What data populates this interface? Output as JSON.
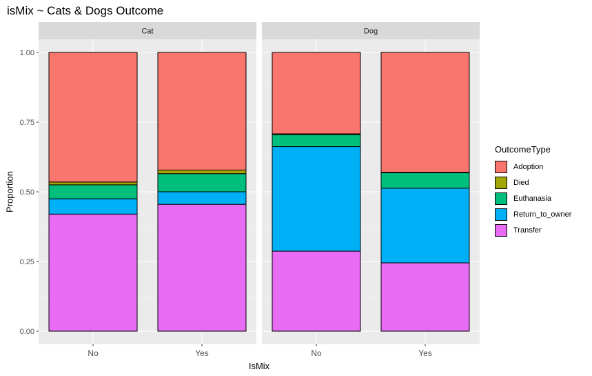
{
  "chart_data": {
    "type": "bar",
    "stacked": true,
    "title": "isMix ~ Cats & Dogs Outcome",
    "xlabel": "IsMix",
    "ylabel": "Proportion",
    "ylim": [
      0,
      1
    ],
    "yticks": [
      "0.00",
      "0.25",
      "0.50",
      "0.75",
      "1.00"
    ],
    "categories": [
      "No",
      "Yes"
    ],
    "facets": [
      "Cat",
      "Dog"
    ],
    "legend": {
      "title": "OutcomeType",
      "position": "right",
      "items": [
        {
          "label": "Adoption",
          "color": "#F8766D"
        },
        {
          "label": "Died",
          "color": "#A3A500"
        },
        {
          "label": "Euthanasia",
          "color": "#00BF7D"
        },
        {
          "label": "Return_to_owner",
          "color": "#00B0F6"
        },
        {
          "label": "Transfer",
          "color": "#E76BF3"
        }
      ]
    },
    "panels": [
      {
        "facet": "Cat",
        "bars": [
          {
            "category": "No",
            "values": {
              "Transfer": 0.42,
              "Return_to_owner": 0.055,
              "Euthanasia": 0.05,
              "Died": 0.01,
              "Adoption": 0.465
            }
          },
          {
            "category": "Yes",
            "values": {
              "Transfer": 0.455,
              "Return_to_owner": 0.045,
              "Euthanasia": 0.065,
              "Died": 0.013,
              "Adoption": 0.422
            }
          }
        ]
      },
      {
        "facet": "Dog",
        "bars": [
          {
            "category": "No",
            "values": {
              "Transfer": 0.287,
              "Return_to_owner": 0.375,
              "Euthanasia": 0.043,
              "Died": 0.003,
              "Adoption": 0.292
            }
          },
          {
            "category": "Yes",
            "values": {
              "Transfer": 0.245,
              "Return_to_owner": 0.268,
              "Euthanasia": 0.055,
              "Died": 0.002,
              "Adoption": 0.43
            }
          }
        ]
      }
    ],
    "stack_order_bottom_to_top": [
      "Transfer",
      "Return_to_owner",
      "Euthanasia",
      "Died",
      "Adoption"
    ],
    "grid": true,
    "panel_background": "#EBEBEB",
    "strip_background": "#D9D9D9"
  }
}
